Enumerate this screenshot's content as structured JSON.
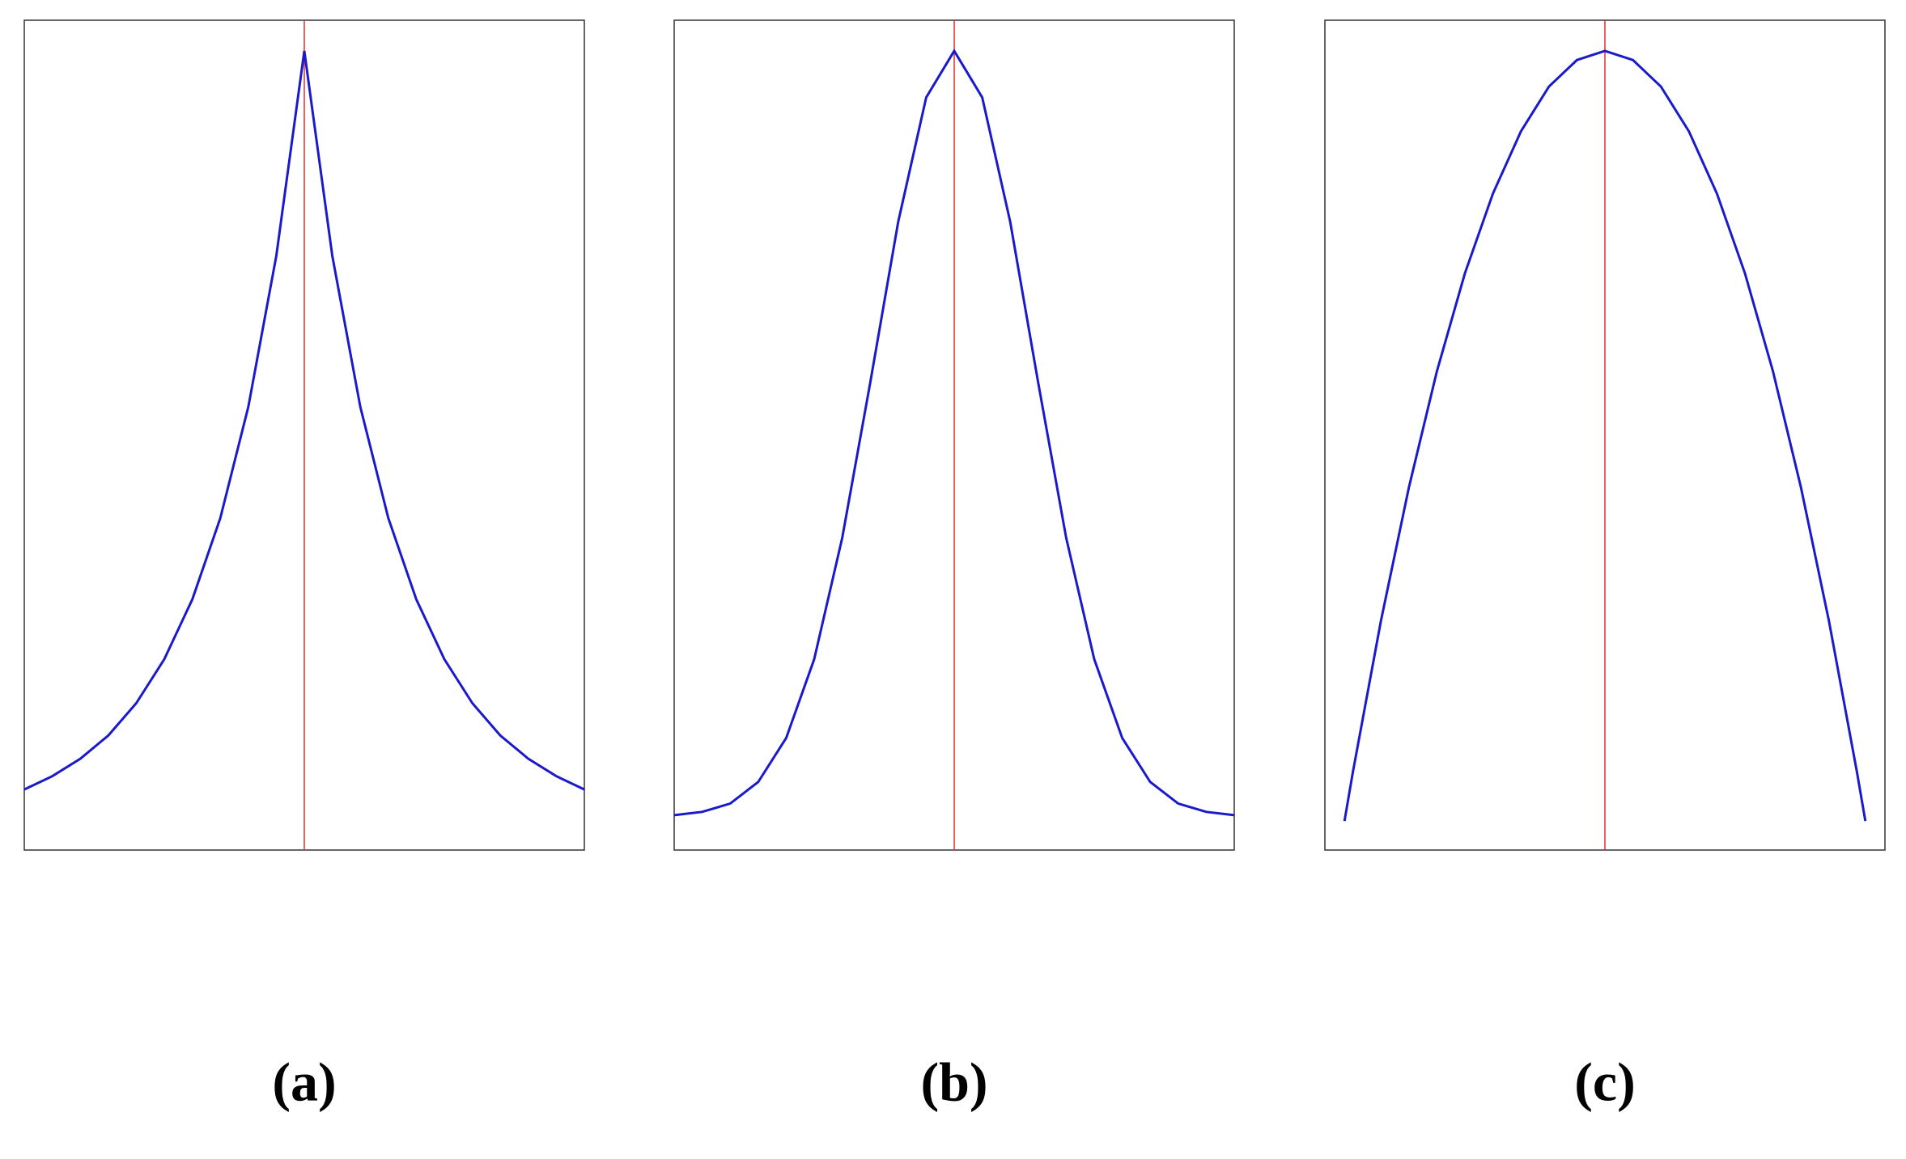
{
  "chart_data": [
    {
      "type": "line",
      "title": "(a)",
      "color": "#1a1acc",
      "vline": 0,
      "vline_color": "#e03030",
      "xlim": [
        -1,
        1
      ],
      "ylim": [
        0,
        1
      ],
      "x": [
        -1,
        -0.9,
        -0.8,
        -0.7,
        -0.6,
        -0.5,
        -0.4,
        -0.3,
        -0.2,
        -0.1,
        0,
        0.1,
        0.2,
        0.3,
        0.4,
        0.5,
        0.6,
        0.7,
        0.8,
        0.9,
        1
      ],
      "values": [
        0.073,
        0.089,
        0.11,
        0.138,
        0.177,
        0.23,
        0.302,
        0.4,
        0.534,
        0.716,
        0.963,
        0.716,
        0.534,
        0.4,
        0.302,
        0.23,
        0.177,
        0.138,
        0.11,
        0.089,
        0.073
      ]
    },
    {
      "type": "line",
      "title": "(b)",
      "color": "#1a1acc",
      "vline": 0,
      "vline_color": "#e03030",
      "xlim": [
        -1,
        1
      ],
      "ylim": [
        0,
        1
      ],
      "x": [
        -1,
        -0.9,
        -0.8,
        -0.7,
        -0.6,
        -0.5,
        -0.4,
        -0.3,
        -0.2,
        -0.1,
        0,
        0.1,
        0.2,
        0.3,
        0.4,
        0.5,
        0.6,
        0.7,
        0.8,
        0.9,
        1
      ],
      "values": [
        0.042,
        0.046,
        0.056,
        0.082,
        0.135,
        0.23,
        0.376,
        0.563,
        0.757,
        0.907,
        0.963,
        0.907,
        0.757,
        0.563,
        0.376,
        0.23,
        0.135,
        0.082,
        0.056,
        0.046,
        0.042
      ]
    },
    {
      "type": "line",
      "title": "(c)",
      "color": "#1a1acc",
      "vline": 0,
      "vline_color": "#e03030",
      "xlim": [
        -1,
        1
      ],
      "ylim": [
        0,
        1
      ],
      "x": [
        -0.93,
        -0.9,
        -0.8,
        -0.7,
        -0.6,
        -0.5,
        -0.4,
        -0.3,
        -0.2,
        -0.1,
        0,
        0.1,
        0.2,
        0.3,
        0.4,
        0.5,
        0.6,
        0.7,
        0.8,
        0.9,
        0.93
      ],
      "values": [
        0.035,
        0.094,
        0.276,
        0.437,
        0.577,
        0.695,
        0.791,
        0.866,
        0.92,
        0.952,
        0.963,
        0.952,
        0.92,
        0.866,
        0.791,
        0.695,
        0.577,
        0.437,
        0.276,
        0.094,
        0.035
      ]
    }
  ]
}
